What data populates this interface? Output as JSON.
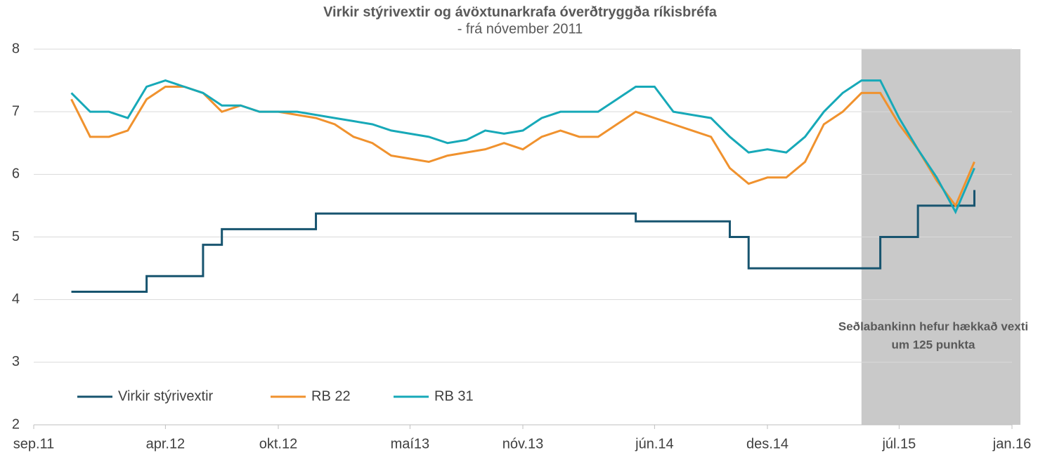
{
  "chart_data": {
    "type": "line",
    "title": "Virkir stýrivextir og ávöxtunarkrafa óverðtryggða ríkisbréfa",
    "subtitle": "- frá nóvember  2011",
    "annotation": [
      "Seðlabankinn hefur hækkað vexti",
      "um 125 punkta"
    ],
    "shaded_range": [
      "2015-05",
      "2016-01"
    ],
    "x": [
      "2011-11",
      "2011-12",
      "2012-01",
      "2012-02",
      "2012-03",
      "2012-04",
      "2012-05",
      "2012-06",
      "2012-07",
      "2012-08",
      "2012-09",
      "2012-10",
      "2012-11",
      "2012-12",
      "2013-01",
      "2013-02",
      "2013-03",
      "2013-04",
      "2013-05",
      "2013-06",
      "2013-07",
      "2013-08",
      "2013-09",
      "2013-10",
      "2013-11",
      "2013-12",
      "2014-01",
      "2014-02",
      "2014-03",
      "2014-04",
      "2014-05",
      "2014-06",
      "2014-07",
      "2014-08",
      "2014-09",
      "2014-10",
      "2014-11",
      "2014-12",
      "2015-01",
      "2015-02",
      "2015-03",
      "2015-04",
      "2015-05",
      "2015-06",
      "2015-07",
      "2015-08",
      "2015-09",
      "2015-10",
      "2015-11"
    ],
    "series": [
      {
        "name": "Virkir stýrivextir",
        "color": "#17546f",
        "step": true,
        "values": [
          4.125,
          4.125,
          4.125,
          4.125,
          4.375,
          4.375,
          4.375,
          4.875,
          5.125,
          5.125,
          5.125,
          5.125,
          5.125,
          5.375,
          5.375,
          5.375,
          5.375,
          5.375,
          5.375,
          5.375,
          5.375,
          5.375,
          5.375,
          5.375,
          5.375,
          5.375,
          5.375,
          5.375,
          5.375,
          5.375,
          5.25,
          5.25,
          5.25,
          5.25,
          5.25,
          5.0,
          4.5,
          4.5,
          4.5,
          4.5,
          4.5,
          4.5,
          4.5,
          5.0,
          5.0,
          5.5,
          5.5,
          5.5,
          5.75
        ]
      },
      {
        "name": "RB 22",
        "color": "#f0922e",
        "values": [
          7.2,
          6.6,
          6.6,
          6.7,
          7.2,
          7.4,
          7.4,
          7.3,
          7.0,
          7.1,
          7.0,
          7.0,
          6.95,
          6.9,
          6.8,
          6.6,
          6.5,
          6.3,
          6.25,
          6.2,
          6.3,
          6.35,
          6.4,
          6.5,
          6.4,
          6.6,
          6.7,
          6.6,
          6.6,
          6.8,
          7.0,
          6.9,
          6.8,
          6.7,
          6.6,
          6.1,
          5.85,
          5.95,
          5.95,
          6.2,
          6.8,
          7.0,
          7.3,
          7.3,
          6.8,
          6.4,
          5.9,
          5.5,
          6.2
        ]
      },
      {
        "name": "RB 31",
        "color": "#17a9b8",
        "values": [
          7.3,
          7.0,
          7.0,
          6.9,
          7.4,
          7.5,
          7.4,
          7.3,
          7.1,
          7.1,
          7.0,
          7.0,
          7.0,
          6.95,
          6.9,
          6.85,
          6.8,
          6.7,
          6.65,
          6.6,
          6.5,
          6.55,
          6.7,
          6.65,
          6.7,
          6.9,
          7.0,
          7.0,
          7.0,
          7.2,
          7.4,
          7.4,
          7.0,
          6.95,
          6.9,
          6.6,
          6.35,
          6.4,
          6.35,
          6.6,
          7.0,
          7.3,
          7.5,
          7.5,
          6.9,
          6.4,
          5.95,
          5.4,
          6.1
        ]
      }
    ],
    "xlim": [
      "2011-09",
      "2016-01"
    ],
    "xticks": [
      {
        "value": "2011-09",
        "label": "sep.11"
      },
      {
        "value": "2012-04",
        "label": "apr.12"
      },
      {
        "value": "2012-10",
        "label": "okt.12"
      },
      {
        "value": "2013-05",
        "label": "maí13"
      },
      {
        "value": "2013-11",
        "label": "nóv.13"
      },
      {
        "value": "2014-06",
        "label": "jún.14"
      },
      {
        "value": "2014-12",
        "label": "des.14"
      },
      {
        "value": "2015-07",
        "label": "júl.15"
      },
      {
        "value": "2016-01",
        "label": "jan.16"
      }
    ],
    "ylim": [
      2,
      8
    ],
    "yticks": [
      2,
      3,
      4,
      5,
      6,
      7,
      8
    ],
    "grid": true,
    "legend": "bottom-left"
  }
}
